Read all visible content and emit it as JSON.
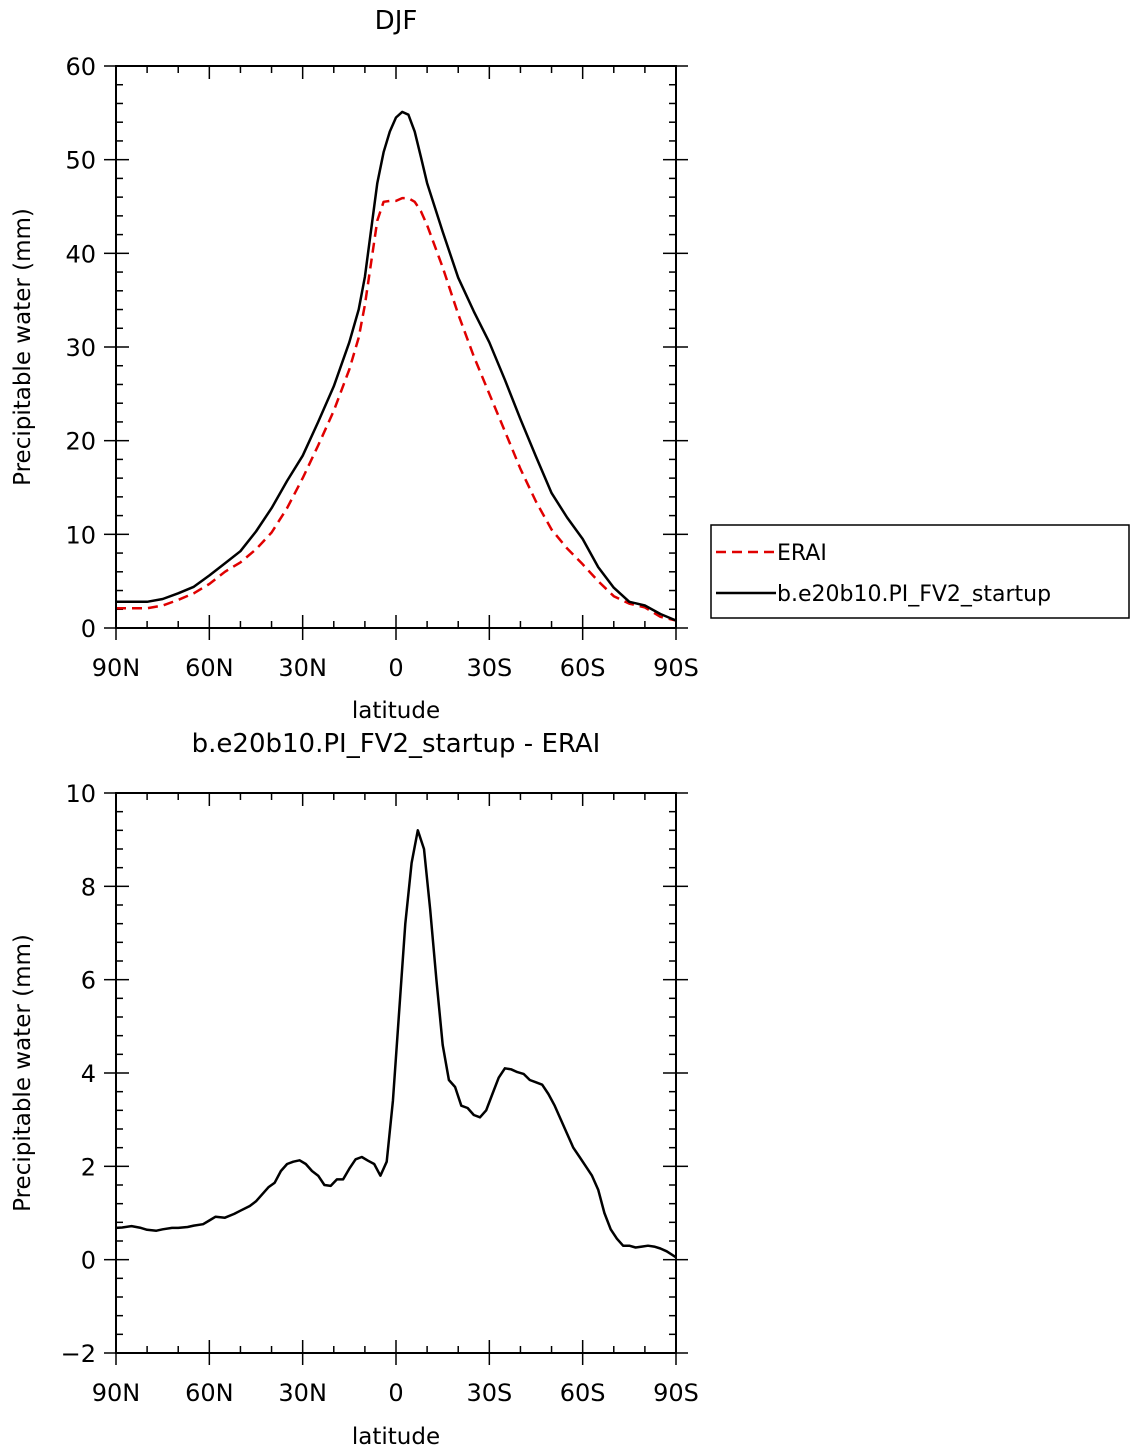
{
  "chart_data": [
    {
      "type": "line",
      "title": "DJF",
      "xlabel": "latitude",
      "ylabel": "Precipitable water (mm)",
      "xlim": [
        90,
        -90
      ],
      "ylim": [
        0,
        60
      ],
      "yticks": [
        0,
        10,
        20,
        30,
        40,
        50,
        60
      ],
      "ytick_labels": [
        "0",
        "10",
        "20",
        "30",
        "40",
        "50",
        "60"
      ],
      "xticks": [
        90,
        60,
        30,
        0,
        -30,
        -60,
        -90
      ],
      "xtick_labels": [
        "90N",
        "60N",
        "30N",
        "0",
        "30S",
        "60S",
        "90S"
      ],
      "legend": "right",
      "series": [
        {
          "name": "ERAI",
          "style": "dashed",
          "color": "#e00000",
          "x": [
            90,
            80,
            75,
            70,
            65,
            60,
            55,
            50,
            45,
            40,
            35,
            30,
            25,
            20,
            15,
            12,
            10,
            8,
            6,
            4,
            2,
            0,
            -2,
            -4,
            -6,
            -8,
            -10,
            -15,
            -20,
            -25,
            -30,
            -35,
            -40,
            -45,
            -50,
            -55,
            -60,
            -65,
            -70,
            -75,
            -80,
            -85,
            -90
          ],
          "y": [
            2.1,
            2.1,
            2.4,
            3.0,
            3.7,
            4.7,
            6.0,
            7.0,
            8.4,
            10.2,
            12.8,
            16.0,
            19.5,
            23.2,
            27.6,
            31.0,
            34.5,
            39.0,
            43.5,
            45.5,
            45.6,
            45.6,
            45.9,
            45.9,
            45.5,
            44.5,
            43.0,
            38.5,
            33.5,
            29.0,
            25.0,
            21.0,
            17.0,
            13.5,
            10.5,
            8.5,
            6.8,
            5.0,
            3.4,
            2.6,
            2.2,
            1.2,
            0.8
          ]
        },
        {
          "name": "b.e20b10.PI_FV2_startup",
          "style": "solid",
          "color": "#000000",
          "x": [
            90,
            85,
            80,
            75,
            70,
            65,
            60,
            55,
            50,
            45,
            40,
            35,
            30,
            25,
            20,
            15,
            12,
            10,
            8,
            6,
            4,
            2,
            0,
            -2,
            -4,
            -6,
            -8,
            -10,
            -15,
            -20,
            -25,
            -30,
            -35,
            -40,
            -45,
            -50,
            -55,
            -60,
            -65,
            -70,
            -75,
            -80,
            -85,
            -90
          ],
          "y": [
            2.8,
            2.8,
            2.8,
            3.1,
            3.7,
            4.4,
            5.6,
            6.9,
            8.2,
            10.3,
            12.8,
            15.7,
            18.4,
            22.0,
            25.8,
            30.5,
            34.0,
            37.5,
            42.5,
            47.5,
            50.8,
            53.0,
            54.5,
            55.1,
            54.8,
            53.0,
            50.3,
            47.5,
            42.3,
            37.4,
            33.8,
            30.5,
            26.5,
            22.3,
            18.3,
            14.4,
            11.8,
            9.5,
            6.5,
            4.3,
            2.8,
            2.4,
            1.5,
            0.8
          ]
        }
      ]
    },
    {
      "type": "line",
      "title": "b.e20b10.PI_FV2_startup - ERAI",
      "xlabel": "latitude",
      "ylabel": "Precipitable water (mm)",
      "xlim": [
        90,
        -90
      ],
      "ylim": [
        -2,
        10
      ],
      "yticks": [
        -2,
        0,
        2,
        4,
        6,
        8,
        10
      ],
      "ytick_labels": [
        "−2",
        "0",
        "2",
        "4",
        "6",
        "8",
        "10"
      ],
      "xticks": [
        90,
        60,
        30,
        0,
        -30,
        -60,
        -90
      ],
      "xtick_labels": [
        "90N",
        "60N",
        "30N",
        "0",
        "30S",
        "60S",
        "90S"
      ],
      "series": [
        {
          "name": "b.e20b10.PI_FV2_startup - ERAI",
          "style": "solid",
          "color": "#000000",
          "x": [
            90,
            88,
            85,
            82,
            80,
            77,
            75,
            72,
            70,
            67,
            65,
            62,
            60,
            58,
            55,
            52,
            50,
            47,
            45,
            43,
            41,
            39,
            37,
            35,
            33,
            31,
            29,
            27,
            25,
            23,
            21,
            19,
            17,
            15,
            13,
            11,
            9,
            7,
            5,
            3,
            1,
            -1,
            -3,
            -5,
            -7,
            -9,
            -11,
            -13,
            -15,
            -17,
            -19,
            -21,
            -23,
            -25,
            -27,
            -29,
            -31,
            -33,
            -35,
            -37,
            -39,
            -41,
            -43,
            -45,
            -47,
            -49,
            -51,
            -53,
            -55,
            -57,
            -59,
            -61,
            -63,
            -65,
            -67,
            -69,
            -71,
            -73,
            -75,
            -77,
            -79,
            -81,
            -83,
            -85,
            -87,
            -90
          ],
          "y": [
            0.68,
            0.69,
            0.72,
            0.68,
            0.64,
            0.62,
            0.65,
            0.68,
            0.68,
            0.7,
            0.73,
            0.76,
            0.84,
            0.92,
            0.9,
            0.98,
            1.05,
            1.15,
            1.25,
            1.4,
            1.55,
            1.65,
            1.9,
            2.05,
            2.1,
            2.13,
            2.05,
            1.9,
            1.8,
            1.6,
            1.58,
            1.72,
            1.72,
            1.95,
            2.15,
            2.2,
            2.12,
            2.05,
            1.8,
            2.1,
            3.4,
            5.3,
            7.2,
            8.5,
            9.2,
            8.8,
            7.5,
            6.0,
            4.6,
            3.85,
            3.7,
            3.3,
            3.25,
            3.1,
            3.05,
            3.2,
            3.55,
            3.9,
            4.1,
            4.08,
            4.02,
            3.98,
            3.85,
            3.8,
            3.75,
            3.55,
            3.3,
            3.0,
            2.7,
            2.4,
            2.2,
            2.0,
            1.8,
            1.5,
            1.0,
            0.65,
            0.45,
            0.3,
            0.3,
            0.26,
            0.28,
            0.3,
            0.28,
            0.24,
            0.18,
            0.05
          ]
        }
      ]
    }
  ]
}
